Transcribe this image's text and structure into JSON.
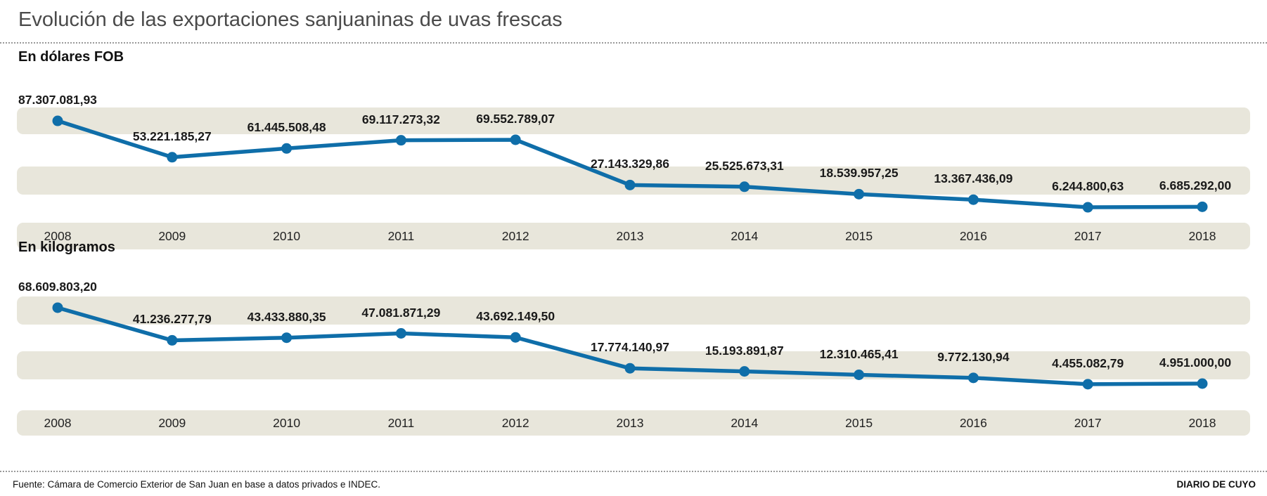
{
  "title": "Evolución de las exportaciones sanjuaninas de uvas frescas",
  "footer": {
    "source": "Fuente: Cámara de Comercio Exterior de San Juan en base a datos privados e INDEC.",
    "credit": "DIARIO DE CUYO"
  },
  "colors": {
    "line": "#0f6ea9",
    "point": "#0f6ea9",
    "band": "#e8e6db",
    "value_label": "#1a1a1a",
    "title": "#4a4a4a"
  },
  "chart_data": [
    {
      "type": "line",
      "title": "En dólares FOB",
      "categories": [
        "2008",
        "2009",
        "2010",
        "2011",
        "2012",
        "2013",
        "2014",
        "2015",
        "2016",
        "2017",
        "2018"
      ],
      "values": [
        87307081.93,
        53221185.27,
        61445508.48,
        69117273.32,
        69552789.07,
        27143329.86,
        25525673.31,
        18539957.25,
        13367436.09,
        6244800.63,
        6685292.0
      ],
      "value_labels": [
        "87.307.081,93",
        "53.221.185,27",
        "61.445.508,48",
        "69.117.273,32",
        "69.552.789,07",
        "27.143.329,86",
        "25.525.673,31",
        "18.539.957,25",
        "13.367.436,09",
        "6.244.800,63",
        "6.685.292,00"
      ],
      "xlabel": "",
      "ylabel": "",
      "ylim": [
        0,
        92000000
      ],
      "grid": "alternating-horizontal-bands",
      "legend": "none",
      "point_markers": true,
      "data_labels": "above-points"
    },
    {
      "type": "line",
      "title": "En kilogramos",
      "categories": [
        "2008",
        "2009",
        "2010",
        "2011",
        "2012",
        "2013",
        "2014",
        "2015",
        "2016",
        "2017",
        "2018"
      ],
      "values": [
        68609803.2,
        41236277.79,
        43433880.35,
        47081871.29,
        43692149.5,
        17774140.97,
        15193891.87,
        12310465.41,
        9772130.94,
        4455082.79,
        4951000.0
      ],
      "value_labels": [
        "68.609.803,20",
        "41.236.277,79",
        "43.433.880,35",
        "47.081.871,29",
        "43.692.149,50",
        "17.774.140,97",
        "15.193.891,87",
        "12.310.465,41",
        "9.772.130,94",
        "4.455.082,79",
        "4.951.000,00"
      ],
      "xlabel": "",
      "ylabel": "",
      "ylim": [
        0,
        75000000
      ],
      "grid": "alternating-horizontal-bands",
      "legend": "none",
      "point_markers": true,
      "data_labels": "above-points"
    }
  ]
}
